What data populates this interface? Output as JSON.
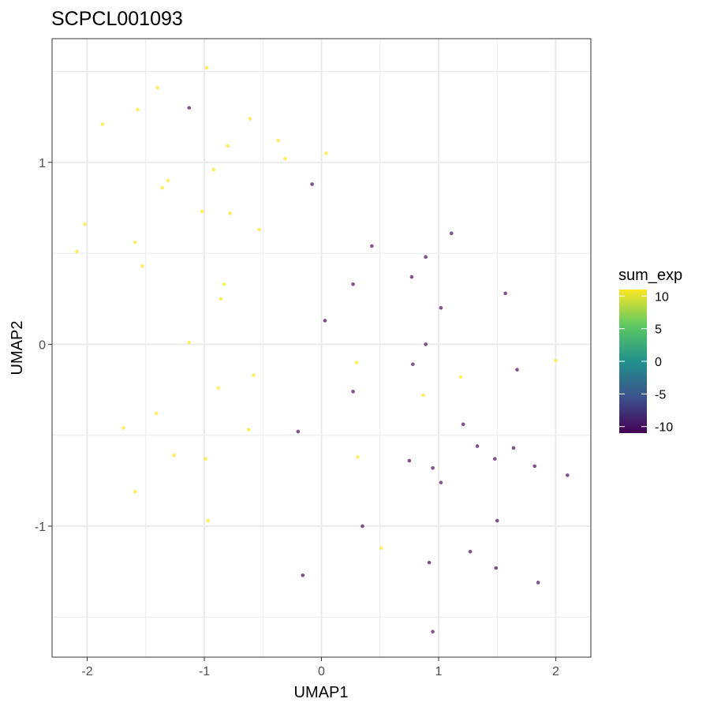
{
  "chart_data": {
    "type": "scatter",
    "title": "SCPCL001093",
    "xlabel": "UMAP1",
    "ylabel": "UMAP2",
    "xlim": [
      -2.3,
      2.3
    ],
    "ylim": [
      -1.72,
      1.68
    ],
    "x_ticks": [
      -2,
      -1,
      0,
      1,
      2
    ],
    "x_tick_labels": [
      "-2",
      "-1",
      "0",
      "1",
      "2"
    ],
    "y_ticks": [
      -1,
      0,
      1
    ],
    "y_tick_labels": [
      "-1",
      "0",
      "1"
    ],
    "grid": true,
    "legend": {
      "title": "sum_exp",
      "placement": "right",
      "min": -11,
      "max": 11,
      "ticks": [
        10,
        5,
        0,
        -5,
        -10
      ],
      "tick_labels": [
        "10",
        "5",
        "0",
        "-5",
        "-10"
      ]
    },
    "colors": {
      "high": "#FDE725",
      "low": "#440154"
    },
    "points": [
      {
        "x": -0.98,
        "y": 1.52,
        "v": 10
      },
      {
        "x": -1.4,
        "y": 1.41,
        "v": 10
      },
      {
        "x": -1.57,
        "y": 1.29,
        "v": 10
      },
      {
        "x": -1.87,
        "y": 1.21,
        "v": 10
      },
      {
        "x": -0.61,
        "y": 1.24,
        "v": 10
      },
      {
        "x": -0.8,
        "y": 1.09,
        "v": 10
      },
      {
        "x": -0.37,
        "y": 1.12,
        "v": 10
      },
      {
        "x": -0.31,
        "y": 1.02,
        "v": 10
      },
      {
        "x": 0.04,
        "y": 1.05,
        "v": 10
      },
      {
        "x": -0.92,
        "y": 0.96,
        "v": 10
      },
      {
        "x": -1.31,
        "y": 0.9,
        "v": 10
      },
      {
        "x": -1.36,
        "y": 0.86,
        "v": 10
      },
      {
        "x": -1.02,
        "y": 0.73,
        "v": 10
      },
      {
        "x": -0.78,
        "y": 0.72,
        "v": 10
      },
      {
        "x": -2.02,
        "y": 0.66,
        "v": 10
      },
      {
        "x": -0.53,
        "y": 0.63,
        "v": 10
      },
      {
        "x": -1.59,
        "y": 0.56,
        "v": 10
      },
      {
        "x": -2.09,
        "y": 0.51,
        "v": 10
      },
      {
        "x": -1.53,
        "y": 0.43,
        "v": 10
      },
      {
        "x": -0.83,
        "y": 0.33,
        "v": 10
      },
      {
        "x": -0.86,
        "y": 0.25,
        "v": 10
      },
      {
        "x": -1.13,
        "y": 0.01,
        "v": 10
      },
      {
        "x": 0.3,
        "y": -0.1,
        "v": 10
      },
      {
        "x": -0.58,
        "y": -0.17,
        "v": 10
      },
      {
        "x": 1.19,
        "y": -0.18,
        "v": 10
      },
      {
        "x": 2.0,
        "y": -0.09,
        "v": 10
      },
      {
        "x": -0.88,
        "y": -0.24,
        "v": 10
      },
      {
        "x": 0.87,
        "y": -0.28,
        "v": 10
      },
      {
        "x": -1.41,
        "y": -0.38,
        "v": 10
      },
      {
        "x": -1.69,
        "y": -0.46,
        "v": 10
      },
      {
        "x": -0.62,
        "y": -0.47,
        "v": 10
      },
      {
        "x": -1.26,
        "y": -0.61,
        "v": 10
      },
      {
        "x": -0.99,
        "y": -0.63,
        "v": 10
      },
      {
        "x": 0.31,
        "y": -0.62,
        "v": 10
      },
      {
        "x": -1.59,
        "y": -0.81,
        "v": 10
      },
      {
        "x": -0.97,
        "y": -0.97,
        "v": 10
      },
      {
        "x": 0.51,
        "y": -1.12,
        "v": 10
      },
      {
        "x": -1.13,
        "y": 1.3,
        "v": -10
      },
      {
        "x": -0.08,
        "y": 0.88,
        "v": -10
      },
      {
        "x": 1.11,
        "y": 0.61,
        "v": -10
      },
      {
        "x": 0.43,
        "y": 0.54,
        "v": -10
      },
      {
        "x": 0.89,
        "y": 0.48,
        "v": -10
      },
      {
        "x": 0.77,
        "y": 0.37,
        "v": -10
      },
      {
        "x": 0.27,
        "y": 0.33,
        "v": -10
      },
      {
        "x": 1.57,
        "y": 0.28,
        "v": -10
      },
      {
        "x": 1.02,
        "y": 0.2,
        "v": -10
      },
      {
        "x": 0.03,
        "y": 0.13,
        "v": -10
      },
      {
        "x": 0.89,
        "y": 0.0,
        "v": -10
      },
      {
        "x": 0.78,
        "y": -0.11,
        "v": -10
      },
      {
        "x": 1.67,
        "y": -0.14,
        "v": -10
      },
      {
        "x": 0.27,
        "y": -0.26,
        "v": -10
      },
      {
        "x": 1.21,
        "y": -0.44,
        "v": -10
      },
      {
        "x": -0.2,
        "y": -0.48,
        "v": -10
      },
      {
        "x": 1.33,
        "y": -0.56,
        "v": -10
      },
      {
        "x": 1.64,
        "y": -0.57,
        "v": -10
      },
      {
        "x": 1.48,
        "y": -0.63,
        "v": -10
      },
      {
        "x": 0.75,
        "y": -0.64,
        "v": -10
      },
      {
        "x": 1.82,
        "y": -0.67,
        "v": -10
      },
      {
        "x": 0.95,
        "y": -0.68,
        "v": -10
      },
      {
        "x": 2.1,
        "y": -0.72,
        "v": -10
      },
      {
        "x": 1.02,
        "y": -0.76,
        "v": -10
      },
      {
        "x": 1.5,
        "y": -0.97,
        "v": -10
      },
      {
        "x": 0.35,
        "y": -1.0,
        "v": -10
      },
      {
        "x": 1.27,
        "y": -1.14,
        "v": -10
      },
      {
        "x": 0.92,
        "y": -1.2,
        "v": -10
      },
      {
        "x": 1.49,
        "y": -1.23,
        "v": -10
      },
      {
        "x": -0.16,
        "y": -1.27,
        "v": -10
      },
      {
        "x": 1.85,
        "y": -1.31,
        "v": -10
      },
      {
        "x": 0.95,
        "y": -1.58,
        "v": -10
      }
    ]
  }
}
